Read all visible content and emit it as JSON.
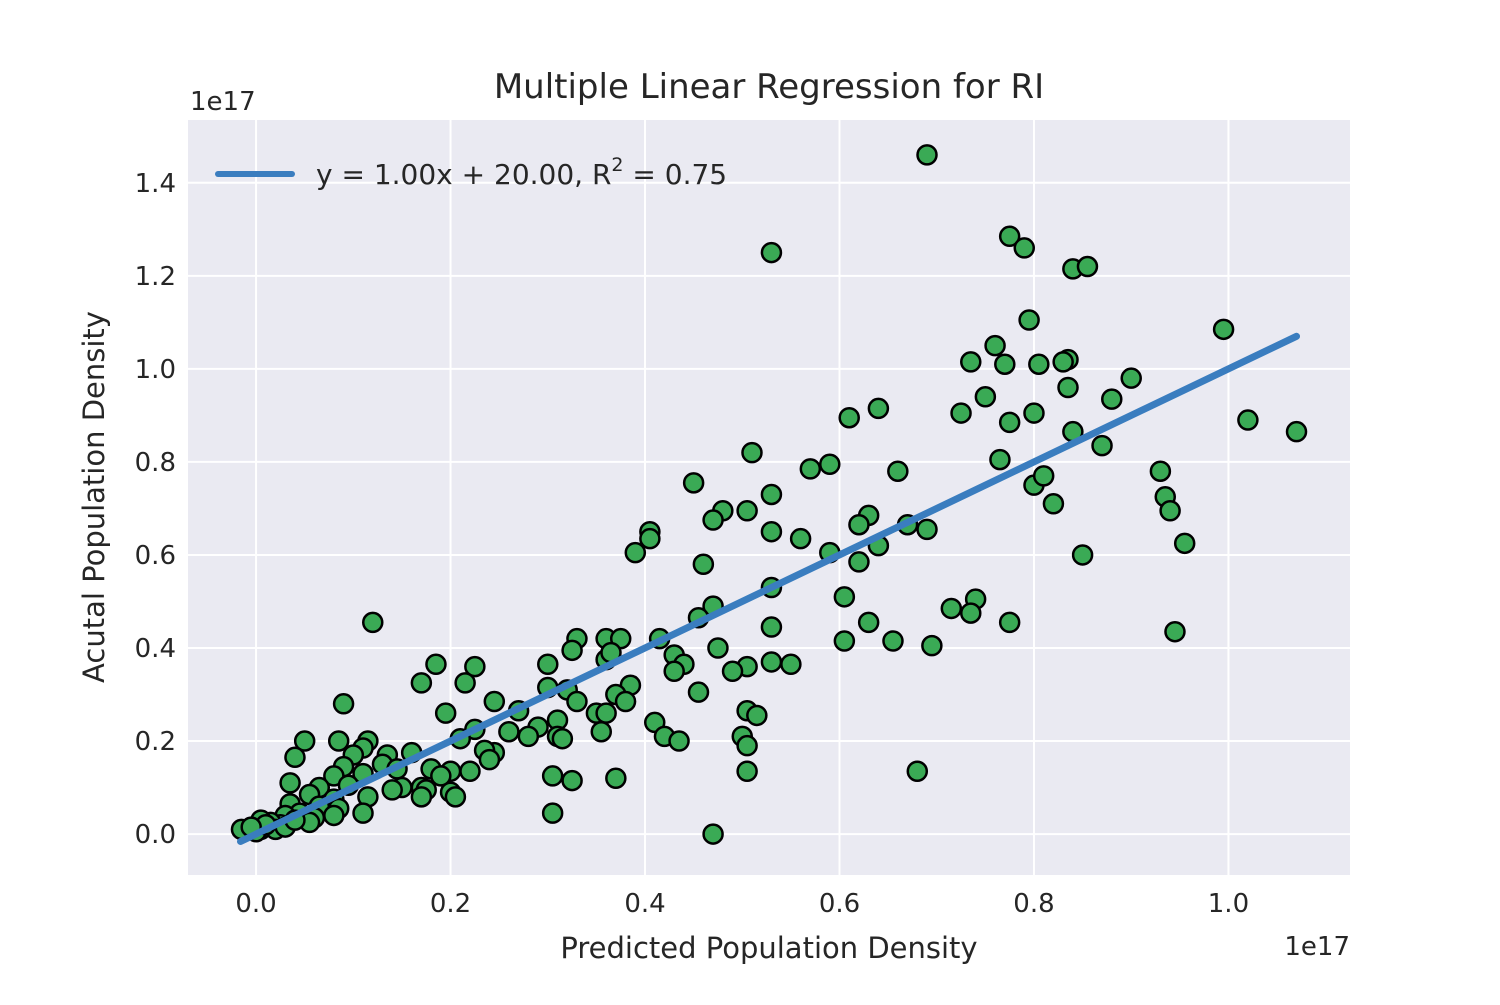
{
  "chart_data": {
    "type": "scatter",
    "title": "Multiple Linear Regression for RI",
    "xlabel": "Predicted Population Density",
    "ylabel": "Acutal Population Density",
    "x_offset_text": "1e17",
    "y_offset_text": "1e17",
    "xlim": [
      -0.07,
      1.125
    ],
    "ylim": [
      -0.088,
      1.535
    ],
    "x_ticks": [
      0.0,
      0.2,
      0.4,
      0.6,
      0.8,
      1.0
    ],
    "x_tick_labels": [
      "0.0",
      "0.2",
      "0.4",
      "0.6",
      "0.8",
      "1.0"
    ],
    "y_ticks": [
      0.0,
      0.2,
      0.4,
      0.6,
      0.8,
      1.0,
      1.2,
      1.4
    ],
    "y_tick_labels": [
      "0.0",
      "0.2",
      "0.4",
      "0.6",
      "0.8",
      "1.0",
      "1.2",
      "1.4"
    ],
    "grid": true,
    "legend_position": "upper-left",
    "legend": {
      "prefix": "y = 1.00x + 20.00, R",
      "superscript": "2",
      "suffix": " = 0.75"
    },
    "fit_line": {
      "slope": 1.0,
      "intercept": 0.0,
      "x_range": [
        -0.016,
        1.07
      ],
      "color": "#3a7dbf"
    },
    "point_color": "#3aaa55",
    "point_edge_color": "#000000",
    "background_color": "#eaeaf2",
    "points": [
      [
        0.69,
        1.46
      ],
      [
        0.53,
        1.25
      ],
      [
        0.775,
        1.285
      ],
      [
        0.79,
        1.26
      ],
      [
        0.84,
        1.215
      ],
      [
        0.855,
        1.22
      ],
      [
        0.795,
        1.105
      ],
      [
        0.995,
        1.085
      ],
      [
        0.76,
        1.05
      ],
      [
        0.735,
        1.015
      ],
      [
        0.77,
        1.01
      ],
      [
        0.805,
        1.01
      ],
      [
        0.835,
        1.02
      ],
      [
        0.83,
        1.015
      ],
      [
        0.835,
        0.96
      ],
      [
        0.9,
        0.98
      ],
      [
        0.75,
        0.94
      ],
      [
        0.88,
        0.935
      ],
      [
        0.725,
        0.905
      ],
      [
        0.8,
        0.905
      ],
      [
        0.775,
        0.885
      ],
      [
        0.61,
        0.895
      ],
      [
        0.64,
        0.915
      ],
      [
        1.02,
        0.89
      ],
      [
        1.07,
        0.865
      ],
      [
        0.84,
        0.865
      ],
      [
        0.87,
        0.835
      ],
      [
        0.51,
        0.82
      ],
      [
        0.765,
        0.805
      ],
      [
        0.59,
        0.795
      ],
      [
        0.57,
        0.785
      ],
      [
        0.66,
        0.78
      ],
      [
        0.93,
        0.78
      ],
      [
        0.45,
        0.755
      ],
      [
        0.8,
        0.75
      ],
      [
        0.81,
        0.77
      ],
      [
        0.53,
        0.73
      ],
      [
        0.935,
        0.725
      ],
      [
        0.82,
        0.71
      ],
      [
        0.94,
        0.695
      ],
      [
        0.505,
        0.695
      ],
      [
        0.48,
        0.695
      ],
      [
        0.47,
        0.675
      ],
      [
        0.63,
        0.685
      ],
      [
        0.62,
        0.665
      ],
      [
        0.67,
        0.665
      ],
      [
        0.69,
        0.655
      ],
      [
        0.53,
        0.65
      ],
      [
        0.405,
        0.65
      ],
      [
        0.405,
        0.635
      ],
      [
        0.39,
        0.605
      ],
      [
        0.56,
        0.635
      ],
      [
        0.59,
        0.605
      ],
      [
        0.64,
        0.62
      ],
      [
        0.955,
        0.625
      ],
      [
        0.85,
        0.6
      ],
      [
        0.62,
        0.585
      ],
      [
        0.46,
        0.58
      ],
      [
        0.53,
        0.53
      ],
      [
        0.605,
        0.51
      ],
      [
        0.715,
        0.485
      ],
      [
        0.74,
        0.505
      ],
      [
        0.735,
        0.475
      ],
      [
        0.47,
        0.49
      ],
      [
        0.455,
        0.465
      ],
      [
        0.775,
        0.455
      ],
      [
        0.63,
        0.455
      ],
      [
        0.53,
        0.445
      ],
      [
        0.12,
        0.455
      ],
      [
        0.945,
        0.435
      ],
      [
        0.33,
        0.42
      ],
      [
        0.36,
        0.42
      ],
      [
        0.375,
        0.42
      ],
      [
        0.415,
        0.42
      ],
      [
        0.605,
        0.415
      ],
      [
        0.655,
        0.415
      ],
      [
        0.695,
        0.405
      ],
      [
        0.475,
        0.4
      ],
      [
        0.325,
        0.395
      ],
      [
        0.36,
        0.375
      ],
      [
        0.365,
        0.39
      ],
      [
        0.43,
        0.385
      ],
      [
        0.44,
        0.365
      ],
      [
        0.43,
        0.35
      ],
      [
        0.3,
        0.365
      ],
      [
        0.185,
        0.365
      ],
      [
        0.225,
        0.36
      ],
      [
        0.53,
        0.37
      ],
      [
        0.55,
        0.365
      ],
      [
        0.505,
        0.36
      ],
      [
        0.49,
        0.35
      ],
      [
        0.17,
        0.325
      ],
      [
        0.215,
        0.325
      ],
      [
        0.3,
        0.315
      ],
      [
        0.385,
        0.32
      ],
      [
        0.455,
        0.305
      ],
      [
        0.32,
        0.31
      ],
      [
        0.33,
        0.285
      ],
      [
        0.37,
        0.3
      ],
      [
        0.38,
        0.285
      ],
      [
        0.09,
        0.28
      ],
      [
        0.245,
        0.285
      ],
      [
        0.27,
        0.265
      ],
      [
        0.195,
        0.26
      ],
      [
        0.35,
        0.26
      ],
      [
        0.36,
        0.26
      ],
      [
        0.505,
        0.265
      ],
      [
        0.515,
        0.255
      ],
      [
        0.41,
        0.24
      ],
      [
        0.31,
        0.245
      ],
      [
        0.29,
        0.23
      ],
      [
        0.225,
        0.225
      ],
      [
        0.26,
        0.22
      ],
      [
        0.355,
        0.22
      ],
      [
        0.21,
        0.205
      ],
      [
        0.31,
        0.21
      ],
      [
        0.315,
        0.205
      ],
      [
        0.28,
        0.21
      ],
      [
        0.42,
        0.21
      ],
      [
        0.435,
        0.2
      ],
      [
        0.5,
        0.21
      ],
      [
        0.505,
        0.19
      ],
      [
        0.05,
        0.2
      ],
      [
        0.085,
        0.2
      ],
      [
        0.115,
        0.2
      ],
      [
        0.11,
        0.185
      ],
      [
        0.1,
        0.17
      ],
      [
        0.135,
        0.17
      ],
      [
        0.16,
        0.175
      ],
      [
        0.245,
        0.175
      ],
      [
        0.235,
        0.18
      ],
      [
        0.04,
        0.165
      ],
      [
        0.24,
        0.16
      ],
      [
        0.13,
        0.15
      ],
      [
        0.09,
        0.145
      ],
      [
        0.145,
        0.14
      ],
      [
        0.18,
        0.14
      ],
      [
        0.2,
        0.135
      ],
      [
        0.22,
        0.135
      ],
      [
        0.11,
        0.13
      ],
      [
        0.08,
        0.125
      ],
      [
        0.035,
        0.11
      ],
      [
        0.065,
        0.1
      ],
      [
        0.095,
        0.105
      ],
      [
        0.15,
        0.1
      ],
      [
        0.17,
        0.1
      ],
      [
        0.19,
        0.125
      ],
      [
        0.305,
        0.125
      ],
      [
        0.325,
        0.115
      ],
      [
        0.37,
        0.12
      ],
      [
        0.505,
        0.135
      ],
      [
        0.68,
        0.135
      ],
      [
        0.14,
        0.095
      ],
      [
        0.175,
        0.095
      ],
      [
        0.2,
        0.09
      ],
      [
        0.055,
        0.085
      ],
      [
        0.08,
        0.075
      ],
      [
        0.115,
        0.08
      ],
      [
        0.205,
        0.08
      ],
      [
        0.17,
        0.08
      ],
      [
        0.035,
        0.065
      ],
      [
        0.065,
        0.06
      ],
      [
        0.085,
        0.055
      ],
      [
        0.045,
        0.045
      ],
      [
        0.03,
        0.04
      ],
      [
        0.06,
        0.035
      ],
      [
        0.08,
        0.04
      ],
      [
        0.11,
        0.045
      ],
      [
        0.305,
        0.045
      ],
      [
        0.055,
        0.025
      ],
      [
        0.025,
        0.02
      ],
      [
        0.015,
        0.025
      ],
      [
        0.005,
        0.03
      ],
      [
        -0.015,
        0.01
      ],
      [
        0.005,
        0.01
      ],
      [
        0.0,
        0.005
      ],
      [
        0.02,
        0.01
      ],
      [
        0.03,
        0.015
      ],
      [
        0.01,
        0.02
      ],
      [
        0.47,
        0.0
      ],
      [
        -0.005,
        0.015
      ],
      [
        0.04,
        0.03
      ]
    ]
  }
}
